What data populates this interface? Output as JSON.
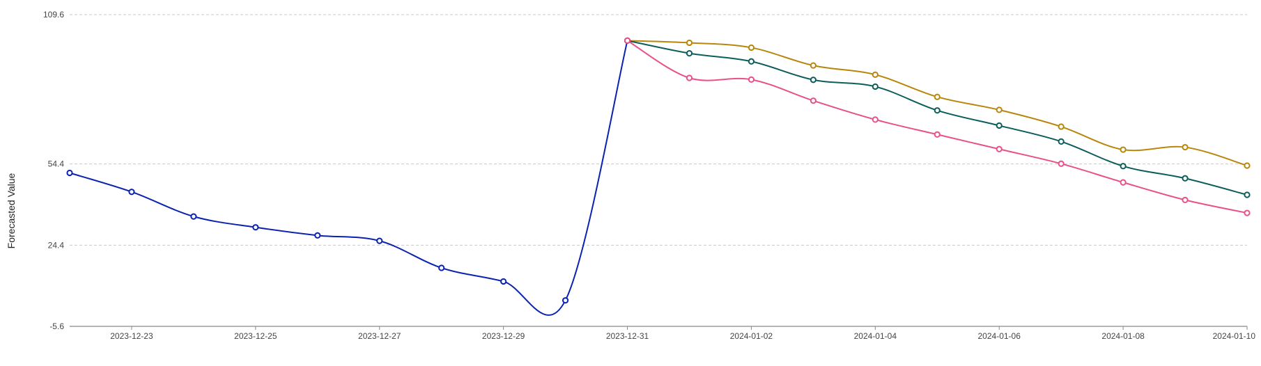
{
  "chart_data": {
    "type": "line",
    "title": "",
    "xlabel": "",
    "ylabel": "Forecasted Value",
    "x_domain": [
      "2023-12-22",
      "2024-01-10"
    ],
    "ylim": [
      -5.6,
      109.6
    ],
    "y_ticks": [
      -5.6,
      24.4,
      54.4,
      109.6
    ],
    "x_ticks": [
      "2023-12-23",
      "2023-12-25",
      "2023-12-27",
      "2023-12-29",
      "2023-12-31",
      "2024-01-02",
      "2024-01-04",
      "2024-01-06",
      "2024-01-08",
      "2024-01-10"
    ],
    "grid": "horizontal-dashed",
    "legend": "none",
    "series": [
      {
        "color": "#0a22b0",
        "points": [
          {
            "x": "2023-12-22",
            "y": 51.1
          },
          {
            "x": "2023-12-23",
            "y": 44.1
          },
          {
            "x": "2023-12-24",
            "y": 35.0
          },
          {
            "x": "2023-12-25",
            "y": 31.0
          },
          {
            "x": "2023-12-26",
            "y": 28.0
          },
          {
            "x": "2023-12-27",
            "y": 26.0
          },
          {
            "x": "2023-12-28",
            "y": 16.0
          },
          {
            "x": "2023-12-29",
            "y": 11.0
          },
          {
            "x": "2023-12-30",
            "y": 4.0
          },
          {
            "x": "2023-12-31",
            "y": 100.0
          }
        ]
      },
      {
        "color": "#b8860b",
        "points": [
          {
            "x": "2023-12-31",
            "y": 100.0
          },
          {
            "x": "2024-01-01",
            "y": 99.2
          },
          {
            "x": "2024-01-02",
            "y": 97.4
          },
          {
            "x": "2024-01-03",
            "y": 90.8
          },
          {
            "x": "2024-01-04",
            "y": 87.4
          },
          {
            "x": "2024-01-05",
            "y": 79.2
          },
          {
            "x": "2024-01-06",
            "y": 74.4
          },
          {
            "x": "2024-01-07",
            "y": 68.2
          },
          {
            "x": "2024-01-08",
            "y": 59.7
          },
          {
            "x": "2024-01-09",
            "y": 60.6
          },
          {
            "x": "2024-01-10",
            "y": 53.8
          }
        ]
      },
      {
        "color": "#0b5e5a",
        "points": [
          {
            "x": "2023-12-31",
            "y": 100.0
          },
          {
            "x": "2024-01-01",
            "y": 95.3
          },
          {
            "x": "2024-01-02",
            "y": 92.3
          },
          {
            "x": "2024-01-03",
            "y": 85.5
          },
          {
            "x": "2024-01-04",
            "y": 83.0
          },
          {
            "x": "2024-01-05",
            "y": 74.2
          },
          {
            "x": "2024-01-06",
            "y": 68.6
          },
          {
            "x": "2024-01-07",
            "y": 62.7
          },
          {
            "x": "2024-01-08",
            "y": 53.6
          },
          {
            "x": "2024-01-09",
            "y": 49.1
          },
          {
            "x": "2024-01-10",
            "y": 43.0
          }
        ]
      },
      {
        "color": "#e8508a",
        "points": [
          {
            "x": "2023-12-31",
            "y": 100.0
          },
          {
            "x": "2024-01-01",
            "y": 86.2
          },
          {
            "x": "2024-01-02",
            "y": 85.6
          },
          {
            "x": "2024-01-03",
            "y": 77.8
          },
          {
            "x": "2024-01-04",
            "y": 70.8
          },
          {
            "x": "2024-01-05",
            "y": 65.3
          },
          {
            "x": "2024-01-06",
            "y": 59.9
          },
          {
            "x": "2024-01-07",
            "y": 54.5
          },
          {
            "x": "2024-01-08",
            "y": 47.6
          },
          {
            "x": "2024-01-09",
            "y": 41.1
          },
          {
            "x": "2024-01-10",
            "y": 36.3
          }
        ]
      }
    ]
  }
}
